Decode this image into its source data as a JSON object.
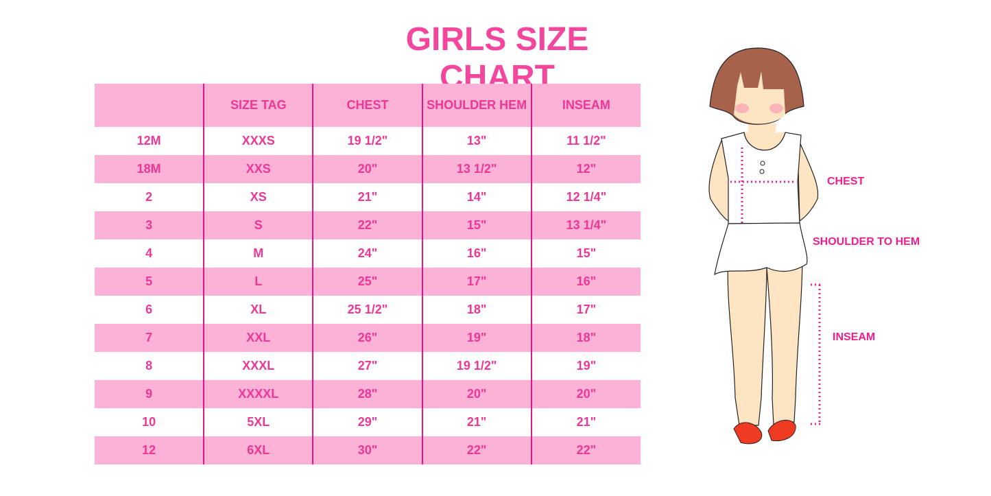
{
  "title": "GIRLS SIZE CHART",
  "table": {
    "headers": [
      "",
      "SIZE TAG",
      "CHEST",
      "SHOULDER HEM",
      "INSEAM"
    ],
    "rows": [
      [
        "12M",
        "XXXS",
        "19 1/2\"",
        "13\"",
        "11 1/2\""
      ],
      [
        "18M",
        "XXS",
        "20\"",
        "13 1/2\"",
        "12\""
      ],
      [
        "2",
        "XS",
        "21\"",
        "14\"",
        "12 1/4\""
      ],
      [
        "3",
        "S",
        "22\"",
        "15\"",
        "13 1/4\""
      ],
      [
        "4",
        "M",
        "24\"",
        "16\"",
        "15\""
      ],
      [
        "5",
        "L",
        "25\"",
        "17\"",
        "16\""
      ],
      [
        "6",
        "XL",
        "25 1/2\"",
        "18\"",
        "17\""
      ],
      [
        "7",
        "XXL",
        "26\"",
        "19\"",
        "18\""
      ],
      [
        "8",
        "XXXL",
        "27\"",
        "19 1/2\"",
        "19\""
      ],
      [
        "9",
        "XXXXL",
        "28\"",
        "20\"",
        "20\""
      ],
      [
        "10",
        "5XL",
        "29\"",
        "21\"",
        "21\""
      ],
      [
        "12",
        "6XL",
        "30\"",
        "22\"",
        "22\""
      ]
    ]
  },
  "figure": {
    "labels": {
      "chest": "CHEST",
      "shoulder_to_hem": "SHOULDER TO HEM",
      "inseam": "INSEAM"
    }
  },
  "colors": {
    "accent": "#ec3795",
    "row_band": "#fcb1d6",
    "divider": "#e2158a"
  }
}
